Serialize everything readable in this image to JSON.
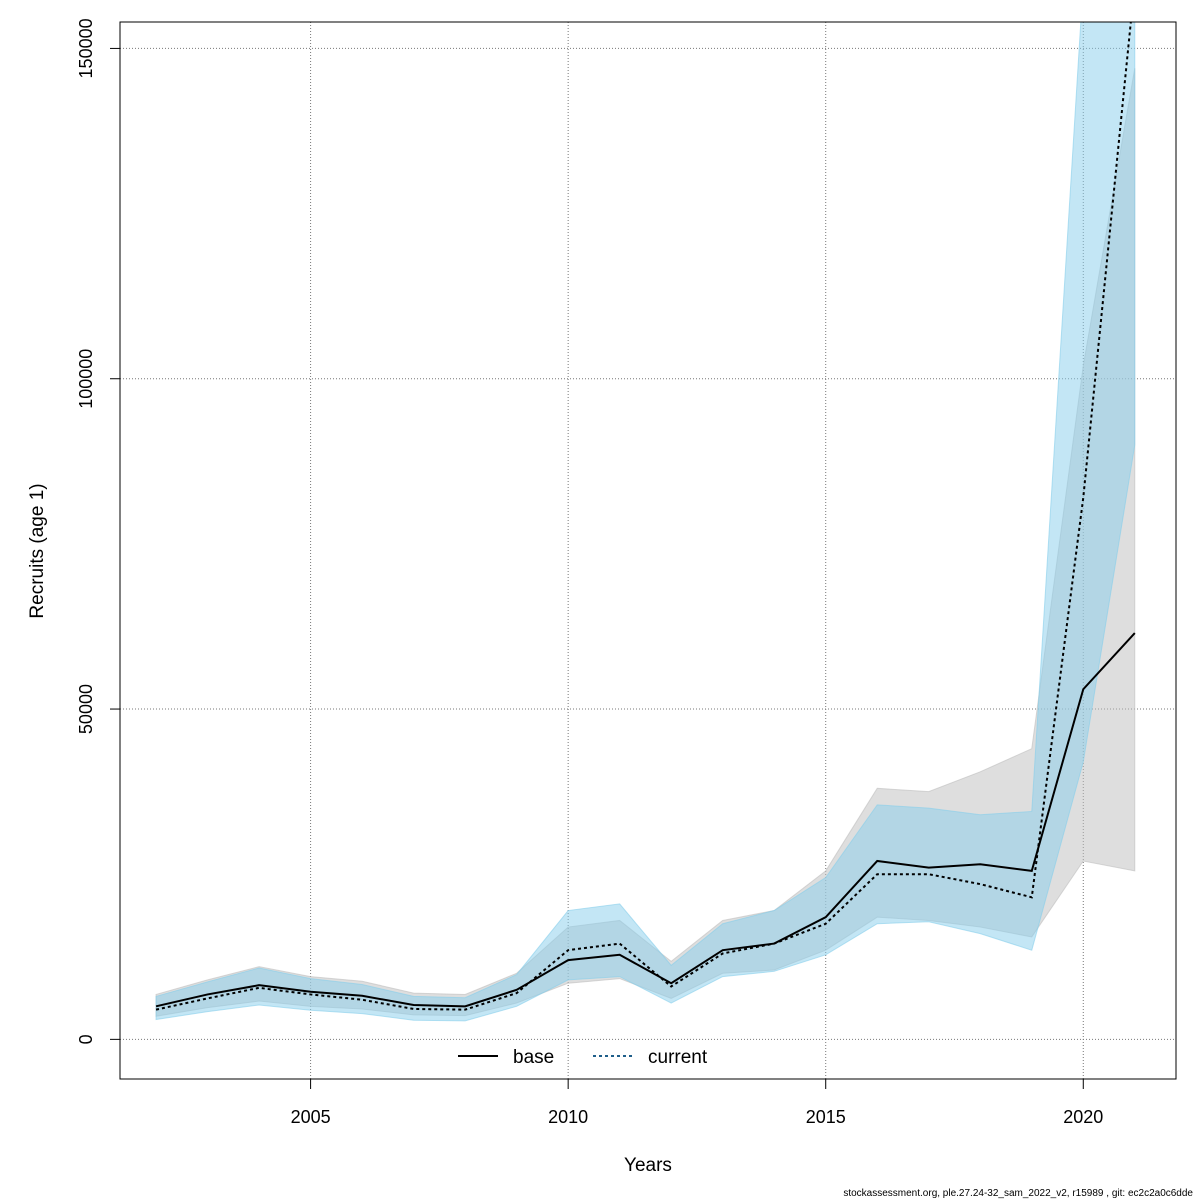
{
  "chart_data": {
    "type": "line",
    "xlabel": "Years",
    "ylabel": "Recruits (age 1)",
    "xlim": [
      2001.3,
      2021.8
    ],
    "ylim": [
      -6000,
      154000
    ],
    "x_ticks": [
      2005,
      2010,
      2015,
      2020
    ],
    "x_tick_labels": [
      "2005",
      "2010",
      "2015",
      "2020"
    ],
    "y_ticks": [
      0,
      50000,
      100000,
      150000
    ],
    "y_tick_labels": [
      "0",
      "50000",
      "100000",
      "150000"
    ],
    "grid": true,
    "legend_position": "bottom",
    "x": [
      2002,
      2003,
      2004,
      2005,
      2006,
      2007,
      2008,
      2009,
      2010,
      2011,
      2012,
      2013,
      2014,
      2015,
      2016,
      2017,
      2018,
      2019,
      2020,
      2021
    ],
    "series": [
      {
        "name": "base",
        "line_color": "#000000",
        "band_color": "#bebebe",
        "values": [
          5000,
          6800,
          8200,
          7200,
          6600,
          5200,
          5000,
          7500,
          12000,
          12800,
          8500,
          13500,
          14500,
          18500,
          27000,
          26000,
          26500,
          25500,
          53000,
          61500
        ],
        "lower": [
          3500,
          4800,
          5800,
          5000,
          4600,
          3700,
          3600,
          5500,
          8500,
          9200,
          6200,
          10000,
          10500,
          13500,
          18500,
          18000,
          17000,
          15500,
          27000,
          25500
        ],
        "upper": [
          6800,
          9000,
          11000,
          9500,
          8800,
          7000,
          6800,
          10000,
          17000,
          18000,
          11800,
          18000,
          19500,
          25500,
          38000,
          37500,
          40500,
          44000,
          102000,
          147000
        ]
      },
      {
        "name": "current",
        "line_color": "#000000",
        "band_color": "#87ceeb",
        "values": [
          4500,
          6200,
          7800,
          6800,
          6000,
          4600,
          4500,
          7000,
          13500,
          14500,
          8000,
          13000,
          14500,
          17500,
          25000,
          25000,
          23500,
          21500,
          82000,
          160000
        ],
        "lower": [
          3000,
          4200,
          5200,
          4400,
          3900,
          2900,
          2800,
          5000,
          9000,
          9500,
          5500,
          9500,
          10300,
          12800,
          17500,
          17800,
          16000,
          13500,
          42000,
          90000
        ],
        "upper": [
          6500,
          8700,
          10800,
          9200,
          8300,
          6500,
          6300,
          9800,
          19500,
          20500,
          11200,
          17500,
          19500,
          24500,
          35500,
          35000,
          34000,
          34500,
          160000,
          290000
        ]
      }
    ]
  },
  "footer": "stockassessment.org, ple.27.24-32_sam_2022_v2, r15989 , git: ec2c2a0c6dde"
}
